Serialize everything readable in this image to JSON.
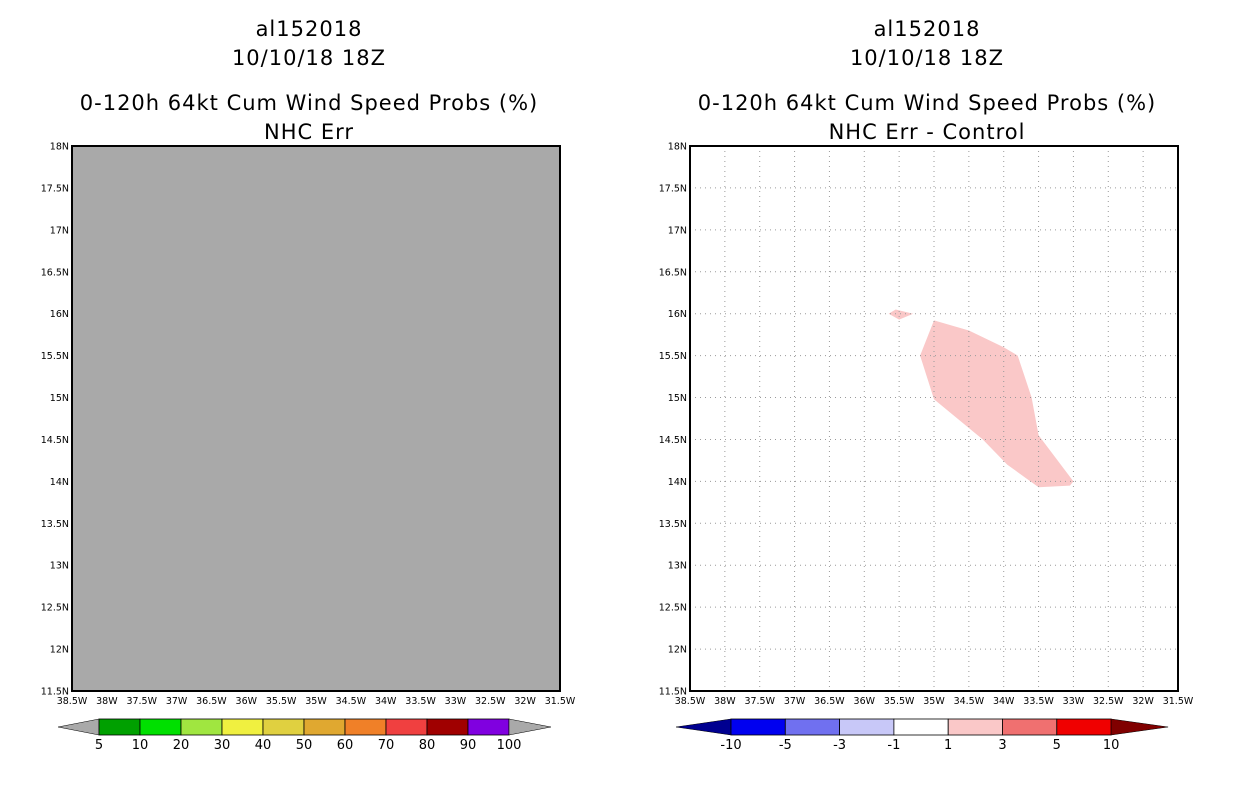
{
  "panels": [
    {
      "storm_id": "al152018",
      "datetime": "10/10/18 18Z",
      "product": "0-120h 64kt Cum Wind Speed Probs (%)",
      "subtitle": "NHC Err",
      "fill_color": "#a9a9a9",
      "grid": false,
      "colorbar": {
        "labels": [
          "5",
          "10",
          "20",
          "30",
          "40",
          "50",
          "60",
          "70",
          "80",
          "90",
          "100"
        ],
        "colors": [
          "#00a000",
          "#00e000",
          "#a0e640",
          "#f0f040",
          "#e0d040",
          "#e0a830",
          "#f08028",
          "#f04040",
          "#a00000",
          "#8000e0"
        ],
        "arrow_color": "#a9a9a9"
      }
    },
    {
      "storm_id": "al152018",
      "datetime": "10/10/18 18Z",
      "product": "0-120h 64kt Cum Wind Speed Probs (%)",
      "subtitle": "NHC Err - Control",
      "fill_color": "#ffffff",
      "grid": true,
      "contour_color": "#fac8c8",
      "contours": [
        [
          [
            -35.55,
            16.05
          ],
          [
            -35.3,
            16.0
          ],
          [
            -35.5,
            15.93
          ],
          [
            -35.65,
            16.0
          ]
        ],
        [
          [
            -35.0,
            15.92
          ],
          [
            -34.5,
            15.8
          ],
          [
            -34.0,
            15.6
          ],
          [
            -33.8,
            15.5
          ],
          [
            -33.6,
            15.0
          ],
          [
            -33.5,
            14.55
          ],
          [
            -33.0,
            14.0
          ],
          [
            -33.05,
            13.95
          ],
          [
            -33.5,
            13.93
          ],
          [
            -33.95,
            14.2
          ],
          [
            -34.3,
            14.5
          ],
          [
            -35.0,
            14.98
          ],
          [
            -35.2,
            15.5
          ]
        ]
      ],
      "colorbar": {
        "labels": [
          "-10",
          "-5",
          "-3",
          "-1",
          "1",
          "3",
          "5",
          "10"
        ],
        "colors": [
          "#0000f0",
          "#7070f0",
          "#c8c8f8",
          "#ffffff",
          "#fac8c8",
          "#f07070",
          "#f00000"
        ],
        "left_arrow_color": "#000090",
        "right_arrow_color": "#800000"
      }
    }
  ],
  "map": {
    "lat_labels": [
      "11.5N",
      "12N",
      "12.5N",
      "13N",
      "13.5N",
      "14N",
      "14.5N",
      "15N",
      "15.5N",
      "16N",
      "16.5N",
      "17N",
      "17.5N",
      "18N"
    ],
    "lon_labels": [
      "38.5W",
      "38W",
      "37.5W",
      "37W",
      "36.5W",
      "36W",
      "35.5W",
      "35W",
      "34.5W",
      "34W",
      "33.5W",
      "33W",
      "32.5W",
      "32W",
      "31.5W"
    ],
    "lat_range": [
      11.5,
      18
    ],
    "lon_range": [
      -38.5,
      -31.5
    ]
  }
}
